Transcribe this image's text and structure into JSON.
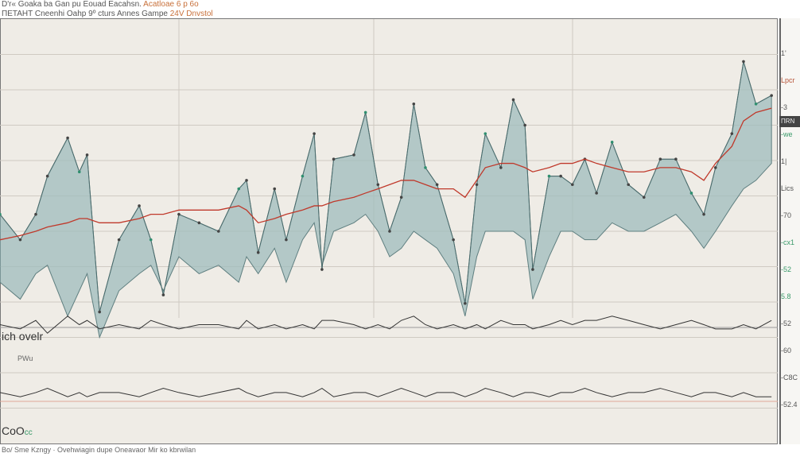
{
  "header": {
    "line1": "D'r« Goaka ba Gan pu Eouad Eacahsn.",
    "line1_accent": "Acatloae 6 p 6o",
    "line2": "ΠΕΤΑΗΤ   Cneenhi Oahp 9º cturs Annes Gampe",
    "line2_accent": "24V Dnvstol"
  },
  "left_labels": {
    "mid": "ich ovelr",
    "mid_sub": "PWu",
    "bottom": "CoO",
    "bottom_accent": "cc"
  },
  "right_axis": {
    "tag": "ΠRN",
    "labels": [
      {
        "text": "1'",
        "tone": "dark"
      },
      {
        "text": "Lpcr",
        "tone": "red"
      },
      {
        "text": "-3",
        "tone": "dark"
      },
      {
        "text": "-we",
        "tone": "green"
      },
      {
        "text": "1|",
        "tone": "dark"
      },
      {
        "text": "Lics",
        "tone": "dark"
      },
      {
        "text": "-70",
        "tone": "dark"
      },
      {
        "text": "-cx1",
        "tone": "green"
      },
      {
        "text": "-52",
        "tone": "green"
      },
      {
        "text": "5.8",
        "tone": "green"
      },
      {
        "text": "-52",
        "tone": "dark"
      },
      {
        "text": "-60",
        "tone": "dark"
      },
      {
        "text": "-C8C",
        "tone": "dark"
      },
      {
        "text": "-52.4",
        "tone": "dark"
      }
    ]
  },
  "footer": "Bo/ Sme Kzngy · Ovehwiagin dupe Oneavaor Mir ko kbrwilan",
  "colors": {
    "area": "#9fbcbc",
    "red_line": "#c0392b",
    "black_line": "#333333",
    "grid": "#cfcac2",
    "background": "#efece6"
  },
  "chart_data": {
    "type": "area",
    "title": "",
    "xlabel": "",
    "ylabel": "",
    "ylim": [
      0,
      100
    ],
    "grid": true,
    "x": [
      0,
      2.6,
      4.6,
      6.1,
      8.7,
      10.2,
      11.2,
      12.8,
      15.3,
      17.9,
      19.4,
      21,
      23,
      25.6,
      28.1,
      30.7,
      31.7,
      33.2,
      35.3,
      36.8,
      38.9,
      40.4,
      41.4,
      42.9,
      45.5,
      47,
      48.6,
      50.1,
      51.6,
      53.2,
      54.7,
      56.2,
      58.3,
      59.8,
      61.3,
      62.4,
      64.4,
      66,
      67.5,
      68.5,
      70.6,
      72.1,
      73.6,
      75.2,
      76.7,
      78.7,
      80.8,
      82.8,
      84.9,
      86.9,
      88.9,
      90.5,
      92,
      94.1,
      95.6,
      97.2,
      99.2
    ],
    "series": [
      {
        "values": [
          54,
          48,
          54,
          63,
          72,
          64,
          68,
          31,
          48,
          56,
          48,
          35,
          54,
          52,
          50,
          60,
          62,
          45,
          60,
          48,
          63,
          73,
          41,
          67,
          68,
          78,
          61,
          50,
          58,
          80,
          65,
          61,
          48,
          33,
          61,
          73,
          65,
          81,
          75,
          41,
          63,
          63,
          61,
          67,
          59,
          71,
          61,
          58,
          67,
          67,
          59,
          54,
          65,
          73,
          90,
          80,
          82
        ]
      },
      {
        "values": [
          38,
          34,
          40,
          42,
          30,
          36,
          40,
          25,
          36,
          40,
          42,
          36,
          44,
          40,
          42,
          38,
          44,
          40,
          46,
          38,
          48,
          52,
          42,
          50,
          52,
          54,
          50,
          44,
          46,
          50,
          48,
          46,
          40,
          30,
          44,
          50,
          50,
          50,
          48,
          34,
          44,
          50,
          50,
          48,
          48,
          52,
          50,
          50,
          52,
          54,
          50,
          46,
          50,
          56,
          60,
          62,
          66
        ]
      },
      {
        "values": [
          48,
          49,
          50,
          51,
          52,
          53,
          53,
          52,
          52,
          53,
          54,
          54,
          55,
          55,
          55,
          56,
          55,
          52,
          53,
          54,
          55,
          56,
          56,
          57,
          58,
          59,
          60,
          61,
          62,
          62,
          61,
          60,
          60,
          58,
          62,
          65,
          66,
          66,
          65,
          64,
          65,
          66,
          66,
          67,
          66,
          65,
          64,
          64,
          65,
          65,
          64,
          62,
          66,
          70,
          76,
          78,
          79
        ]
      },
      {
        "values": [
          28,
          27,
          29,
          26,
          30,
          28,
          29,
          27,
          28,
          27,
          29,
          28,
          27,
          28,
          28,
          27,
          29,
          27,
          28,
          27,
          28,
          27,
          29,
          29,
          28,
          27,
          28,
          27,
          29,
          30,
          28,
          27,
          28,
          27,
          28,
          27,
          29,
          28,
          28,
          27,
          28,
          29,
          28,
          29,
          29,
          30,
          29,
          28,
          27,
          28,
          29,
          28,
          27,
          27,
          28,
          27,
          29
        ]
      },
      {
        "values": [
          12,
          11,
          12,
          13,
          11,
          12,
          11,
          12,
          12,
          11,
          12,
          13,
          12,
          11,
          12,
          13,
          12,
          11,
          12,
          12,
          11,
          12,
          13,
          11,
          12,
          12,
          11,
          12,
          13,
          12,
          11,
          12,
          12,
          11,
          12,
          13,
          12,
          11,
          12,
          12,
          11,
          12,
          12,
          13,
          12,
          11,
          12,
          12,
          13,
          12,
          11,
          12,
          12,
          11,
          12,
          11,
          11
        ]
      }
    ]
  }
}
